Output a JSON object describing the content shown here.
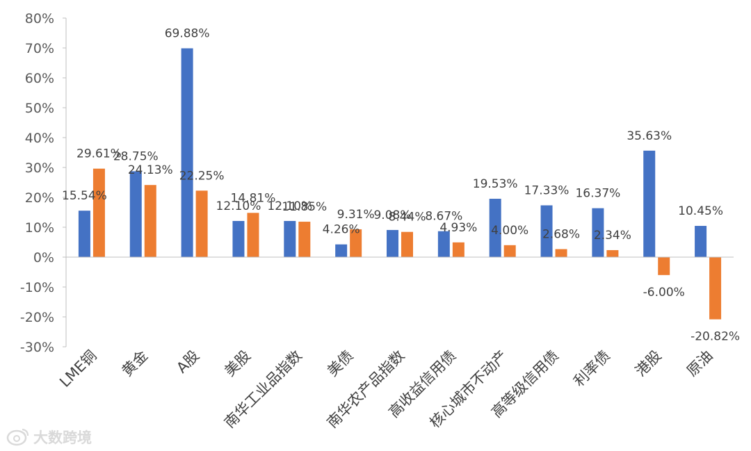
{
  "chart_data": {
    "type": "bar",
    "title": "",
    "xlabel": "",
    "ylabel": "",
    "ylim": [
      -30,
      80
    ],
    "y_tick_step": 10,
    "y_tick_labels": [
      "80%",
      "70%",
      "60%",
      "50%",
      "40%",
      "30%",
      "20%",
      "10%",
      "0%",
      "-10%",
      "-20%",
      "-30%"
    ],
    "grid": false,
    "legend": "none",
    "categories": [
      "LME铜",
      "黄金",
      "A股",
      "美股",
      "南华工业品指数",
      "美债",
      "南华农产品指数",
      "高收益信用债",
      "核心城市不动产",
      "高等级信用债",
      "利率债",
      "港股",
      "原油"
    ],
    "series": [
      {
        "color": "#4472C4",
        "values": [
          15.54,
          28.75,
          69.88,
          12.1,
          12.1,
          4.26,
          9.08,
          8.67,
          19.53,
          17.33,
          16.37,
          35.63,
          10.45
        ],
        "labels": [
          "15.54%",
          "28.75%",
          "69.88%",
          "12.10%",
          "12.10%",
          "4.26%",
          "9.08%",
          "8.67%",
          "19.53%",
          "17.33%",
          "16.37%",
          "35.63%",
          "10.45%"
        ]
      },
      {
        "color": "#ED7D31",
        "values": [
          29.61,
          24.13,
          22.25,
          14.81,
          11.85,
          9.31,
          8.44,
          4.93,
          4.0,
          2.68,
          2.34,
          -6.0,
          -20.82
        ],
        "labels": [
          "29.61%",
          "24.13%",
          "22.25%",
          "14.81%",
          "11.85%",
          "9.31%",
          "8.44%",
          "4.93%",
          "4.00%",
          "2.68%",
          "2.34%",
          "-6.00%",
          "-20.82%"
        ]
      }
    ]
  },
  "watermark": {
    "text": "大数跨境",
    "icon": "weibo-logo-icon"
  }
}
